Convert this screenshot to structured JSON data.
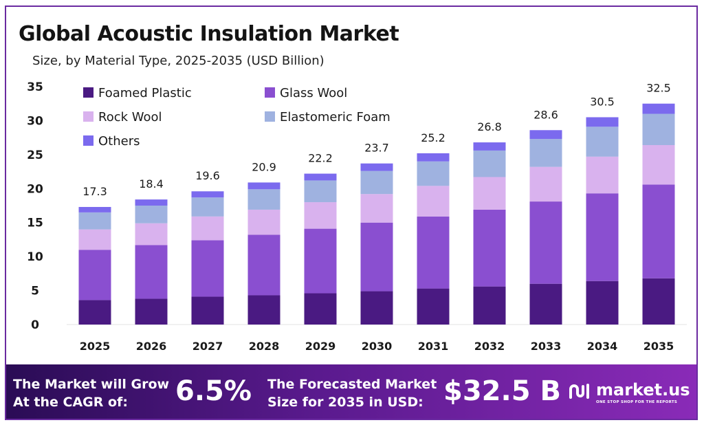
{
  "chart_data": {
    "type": "bar",
    "stacked": true,
    "title": "Global Acoustic Insulation Market",
    "subtitle": "Size, by Material Type, 2025-2035 (USD Billion)",
    "xlabel": "",
    "ylabel": "",
    "ylim": [
      0,
      35
    ],
    "yticks": [
      0,
      5,
      10,
      15,
      20,
      25,
      30,
      35
    ],
    "categories": [
      "2025",
      "2026",
      "2027",
      "2028",
      "2029",
      "2030",
      "2031",
      "2032",
      "2033",
      "2034",
      "2035"
    ],
    "totals": [
      "17.3",
      "18.4",
      "19.6",
      "20.9",
      "22.2",
      "23.7",
      "25.2",
      "26.8",
      "28.6",
      "30.5",
      "32.5"
    ],
    "series": [
      {
        "name": "Foamed Plastic",
        "color": "#4a1a82",
        "values": [
          3.6,
          3.8,
          4.1,
          4.3,
          4.6,
          4.9,
          5.3,
          5.6,
          6.0,
          6.4,
          6.8
        ]
      },
      {
        "name": "Glass Wool",
        "color": "#8a4fd0",
        "values": [
          7.4,
          7.9,
          8.3,
          8.9,
          9.5,
          10.1,
          10.6,
          11.3,
          12.1,
          12.9,
          13.8
        ]
      },
      {
        "name": "Rock Wool",
        "color": "#d9b2ee",
        "values": [
          3.0,
          3.2,
          3.5,
          3.7,
          3.9,
          4.2,
          4.5,
          4.8,
          5.1,
          5.4,
          5.8
        ]
      },
      {
        "name": "Elastomeric Foam",
        "color": "#9fb2e0",
        "values": [
          2.5,
          2.6,
          2.8,
          3.0,
          3.2,
          3.4,
          3.6,
          3.9,
          4.1,
          4.4,
          4.6
        ]
      },
      {
        "name": "Others",
        "color": "#7b6aee",
        "values": [
          0.8,
          0.9,
          0.9,
          1.0,
          1.0,
          1.1,
          1.2,
          1.2,
          1.3,
          1.4,
          1.5
        ]
      }
    ],
    "legend": "top-left",
    "grid": false
  },
  "footer": {
    "cagr_line1": "The Market will Grow",
    "cagr_line2": "At the CAGR of:",
    "cagr_value": "6.5%",
    "forecast_line1": "The Forecasted Market",
    "forecast_line2": "Size for 2035 in USD:",
    "forecast_value": "$32.5 B",
    "brand_name": "market.us",
    "brand_tagline": "ONE STOP SHOP FOR THE REPORTS"
  }
}
